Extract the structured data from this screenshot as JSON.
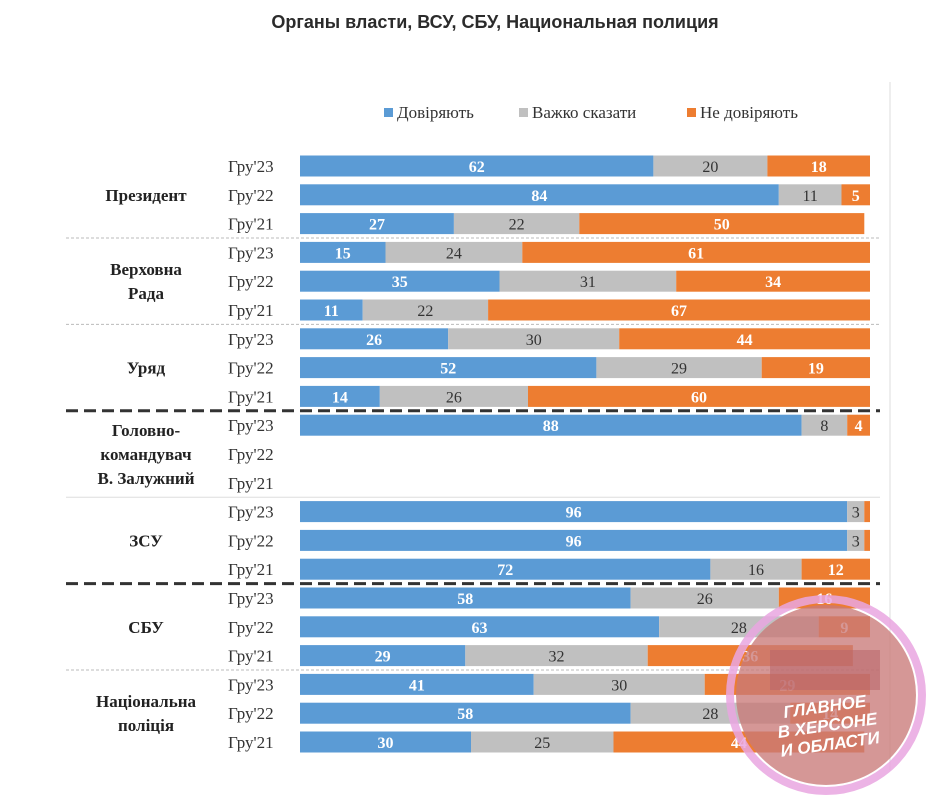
{
  "chart_data": {
    "type": "bar",
    "stacked": true,
    "orientation": "horizontal",
    "title": "Органы власти, ВСУ, СБУ, Национальная полиция",
    "legend": [
      {
        "name": "Довіряють",
        "color": "#5b9bd5"
      },
      {
        "name": "Важко сказати",
        "color": "#c0c0c0"
      },
      {
        "name": "Не  довіряють",
        "color": "#ed7d31"
      }
    ],
    "series_order": [
      "Довіряють",
      "Важко сказати",
      "Не  довіряють"
    ],
    "xlim": [
      0,
      100
    ],
    "groups": [
      {
        "label": [
          "Президент"
        ],
        "rows": [
          {
            "year": "Гру'23",
            "values": [
              62,
              20,
              18
            ]
          },
          {
            "year": "Гру'22",
            "values": [
              84,
              11,
              5
            ]
          },
          {
            "year": "Гру'21",
            "values": [
              27,
              22,
              50
            ]
          }
        ]
      },
      {
        "label": [
          "Верховна",
          "Рада"
        ],
        "rows": [
          {
            "year": "Гру'23",
            "values": [
              15,
              24,
              61
            ]
          },
          {
            "year": "Гру'22",
            "values": [
              35,
              31,
              34
            ]
          },
          {
            "year": "Гру'21",
            "values": [
              11,
              22,
              67
            ]
          }
        ]
      },
      {
        "label": [
          "Уряд"
        ],
        "rows": [
          {
            "year": "Гру'23",
            "values": [
              26,
              30,
              44
            ]
          },
          {
            "year": "Гру'22",
            "values": [
              52,
              29,
              19
            ]
          },
          {
            "year": "Гру'21",
            "values": [
              14,
              26,
              60
            ]
          }
        ]
      },
      {
        "label": [
          "Головно-",
          "командувач",
          "В. Залужний"
        ],
        "rows": [
          {
            "year": "Гру'23",
            "values": [
              88,
              8,
              4
            ]
          },
          {
            "year": "Гру'22",
            "values": null
          },
          {
            "year": "Гру'21",
            "values": null
          }
        ]
      },
      {
        "label": [
          "ЗСУ"
        ],
        "rows": [
          {
            "year": "Гру'23",
            "values": [
              96,
              3,
              1
            ]
          },
          {
            "year": "Гру'22",
            "values": [
              96,
              3,
              1
            ]
          },
          {
            "year": "Гру'21",
            "values": [
              72,
              16,
              12
            ]
          }
        ]
      },
      {
        "label": [
          "СБУ"
        ],
        "rows": [
          {
            "year": "Гру'23",
            "values": [
              58,
              26,
              16
            ]
          },
          {
            "year": "Гру'22",
            "values": [
              63,
              28,
              9
            ]
          },
          {
            "year": "Гру'21",
            "values": [
              29,
              32,
              36
            ]
          }
        ]
      },
      {
        "label": [
          "Національна",
          "поліція"
        ],
        "rows": [
          {
            "year": "Гру'23",
            "values": [
              41,
              30,
              29
            ]
          },
          {
            "year": "Гру'22",
            "values": [
              58,
              28,
              14
            ]
          },
          {
            "year": "Гру'21",
            "values": [
              30,
              25,
              44
            ]
          }
        ]
      }
    ],
    "separators": [
      {
        "after_group": 0,
        "style": "dotted"
      },
      {
        "after_group": 1,
        "style": "dotted"
      },
      {
        "after_group": 2,
        "style": "dashed"
      },
      {
        "after_group": 3,
        "style": "solid"
      },
      {
        "after_group": 4,
        "style": "dashed"
      },
      {
        "after_group": 5,
        "style": "dotted"
      }
    ]
  },
  "watermark": {
    "lines": [
      "ГЛАВНОЕ",
      "В ХЕРСОНЕ",
      "И ОБЛАСТИ"
    ]
  }
}
